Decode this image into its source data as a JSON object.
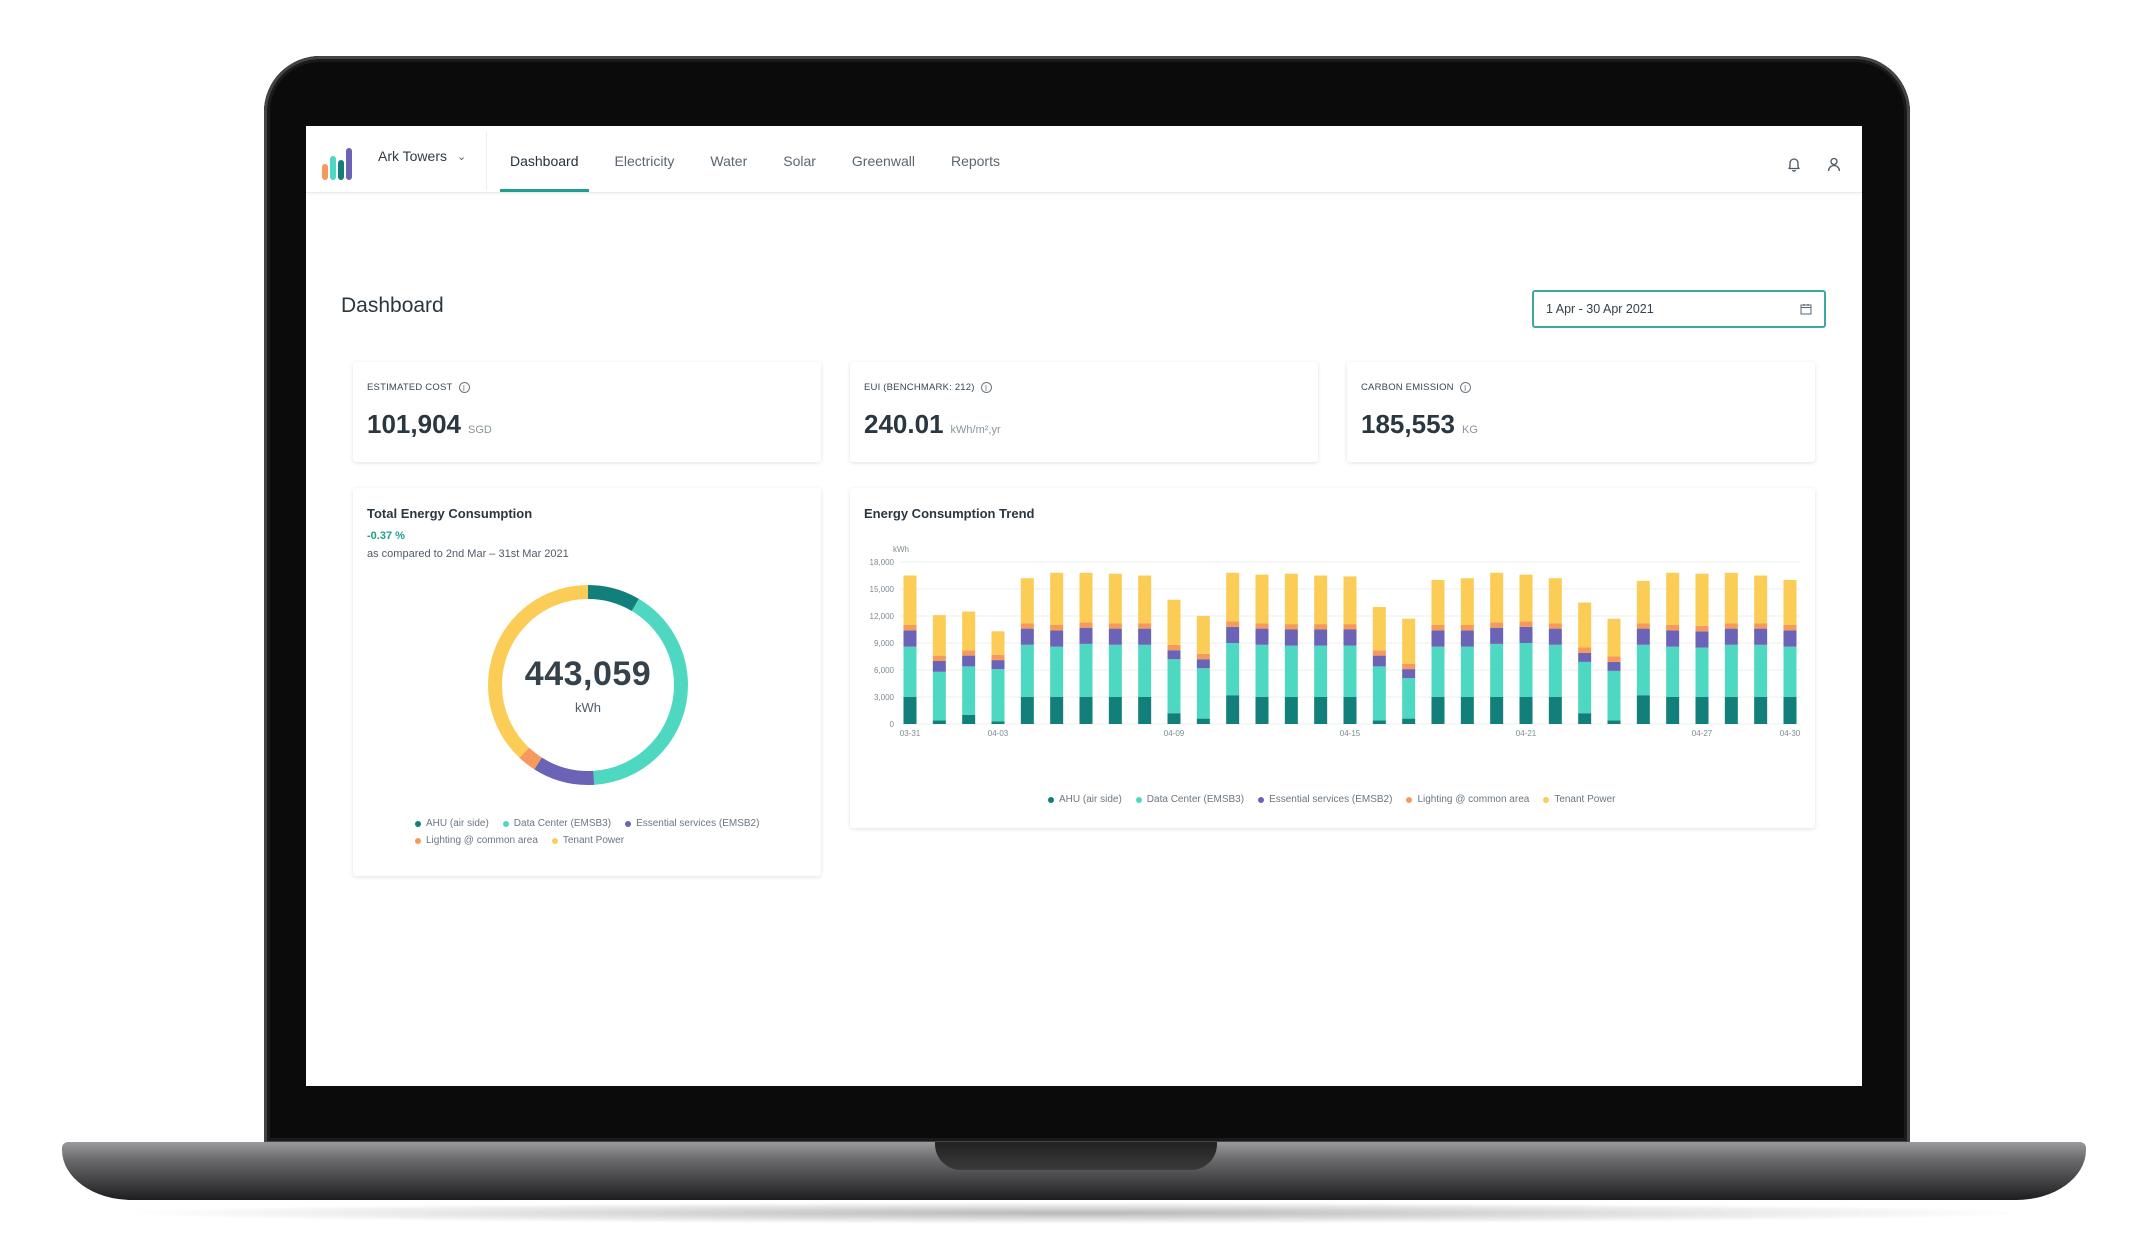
{
  "colors": {
    "ahu": "#127f7b",
    "data_center": "#4fd8c1",
    "essential": "#6b63b5",
    "lighting": "#f59a5a",
    "tenant": "#fccd56",
    "accent": "#1f9e91"
  },
  "header": {
    "site": "Ark Towers",
    "tabs": [
      {
        "label": "Dashboard",
        "active": true
      },
      {
        "label": "Electricity",
        "active": false
      },
      {
        "label": "Water",
        "active": false
      },
      {
        "label": "Solar",
        "active": false
      },
      {
        "label": "Greenwall",
        "active": false
      },
      {
        "label": "Reports",
        "active": false
      }
    ],
    "icons": [
      "bell-icon",
      "user-icon"
    ]
  },
  "page": {
    "title": "Dashboard",
    "date_range": "1 Apr - 30 Apr 2021"
  },
  "kpis": [
    {
      "label": "ESTIMATED COST",
      "value": "101,904",
      "unit": "SGD"
    },
    {
      "label": "EUI (BENCHMARK: 212)",
      "value": "240.01",
      "unit": "kWh/m²,yr"
    },
    {
      "label": "CARBON EMISSION",
      "value": "185,553",
      "unit": "KG"
    }
  ],
  "total_consumption": {
    "title": "Total Energy Consumption",
    "delta": "-0.37 %",
    "compare_text": "as compared to 2nd Mar – 31st Mar 2021",
    "value": "443,059",
    "unit": "kWh"
  },
  "legend": [
    {
      "label": "AHU (air side)",
      "color_key": "ahu"
    },
    {
      "label": "Data Center (EMSB3)",
      "color_key": "data_center"
    },
    {
      "label": "Essential services (EMSB2)",
      "color_key": "essential"
    },
    {
      "label": "Lighting @ common area",
      "color_key": "lighting"
    },
    {
      "label": "Tenant Power",
      "color_key": "tenant"
    }
  ],
  "trend": {
    "title": "Energy Consumption Trend"
  },
  "chart_data": [
    {
      "type": "pie",
      "title": "Total Energy Consumption",
      "categories": [
        "AHU (air side)",
        "Data Center (EMSB3)",
        "Essential services (EMSB2)",
        "Lighting @ common area",
        "Tenant Power"
      ],
      "values": [
        8.5,
        40.5,
        10,
        3,
        38
      ],
      "value_unit": "% of total (estimated)"
    },
    {
      "type": "bar",
      "stacked": true,
      "title": "Energy Consumption Trend",
      "ylabel": "kWh",
      "ylim": [
        0,
        18000
      ],
      "yticks": [
        "0",
        "3,000",
        "6,000",
        "9,000",
        "12,000",
        "15,000",
        "18,000"
      ],
      "xtick_labels": [
        "03-31",
        "04-03",
        "04-09",
        "04-15",
        "04-21",
        "04-27",
        "04-30"
      ],
      "x": [
        "03-31",
        "04-01",
        "04-02",
        "04-03",
        "04-04",
        "04-05",
        "04-06",
        "04-07",
        "04-08",
        "04-09",
        "04-10",
        "04-11",
        "04-12",
        "04-13",
        "04-14",
        "04-15",
        "04-16",
        "04-17",
        "04-18",
        "04-19",
        "04-20",
        "04-21",
        "04-22",
        "04-23",
        "04-24",
        "04-25",
        "04-26",
        "04-27",
        "04-28",
        "04-29",
        "04-30"
      ],
      "series": [
        {
          "name": "AHU (air side)",
          "values": [
            3000,
            400,
            1000,
            300,
            3000,
            3000,
            3000,
            3000,
            3000,
            1200,
            600,
            3200,
            3000,
            3000,
            3000,
            3000,
            400,
            600,
            3000,
            3000,
            3000,
            3000,
            3000,
            1200,
            400,
            3200,
            3000,
            3000,
            3000,
            3000,
            3000
          ]
        },
        {
          "name": "Data Center (EMSB3)",
          "values": [
            5600,
            5400,
            5400,
            5800,
            5800,
            5600,
            5900,
            5800,
            5800,
            6000,
            5600,
            5800,
            5800,
            5700,
            5700,
            5700,
            6000,
            4500,
            5600,
            5600,
            5900,
            6000,
            5800,
            5700,
            5500,
            5600,
            5600,
            5500,
            5800,
            5800,
            5600
          ]
        },
        {
          "name": "Essential services (EMSB2)",
          "values": [
            1800,
            1200,
            1200,
            1000,
            1800,
            1800,
            1800,
            1800,
            1800,
            1000,
            1000,
            1800,
            1800,
            1800,
            1800,
            1800,
            1200,
            1000,
            1800,
            1800,
            1800,
            1800,
            1800,
            1000,
            1000,
            1800,
            1800,
            1800,
            1800,
            1800,
            1800
          ]
        },
        {
          "name": "Lighting @ common area",
          "values": [
            600,
            600,
            600,
            600,
            600,
            600,
            600,
            600,
            600,
            600,
            600,
            600,
            600,
            600,
            600,
            600,
            600,
            600,
            600,
            600,
            600,
            600,
            600,
            600,
            600,
            600,
            600,
            600,
            600,
            600,
            600
          ]
        },
        {
          "name": "Tenant Power",
          "values": [
            5500,
            4500,
            4300,
            2600,
            5000,
            5800,
            5500,
            5500,
            5300,
            5000,
            4200,
            5400,
            5400,
            5600,
            5400,
            5300,
            4800,
            5000,
            5000,
            5200,
            5500,
            5200,
            5000,
            5000,
            4200,
            4700,
            5800,
            5800,
            5600,
            5300,
            5000
          ]
        }
      ]
    }
  ]
}
